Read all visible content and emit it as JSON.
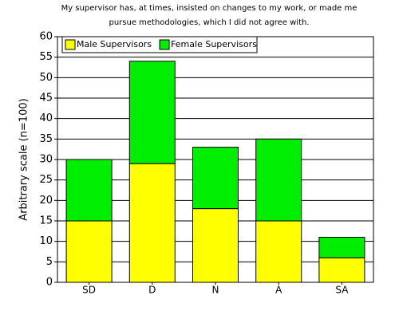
{
  "chart_data": {
    "type": "stacked-bar",
    "title": [
      "My supervisor has, at times, insisted on changes to my work, or made me",
      "pursue methodologies, which I did not agree with."
    ],
    "y_label": "Arbitrary scale (n=100)",
    "categories": [
      "SD",
      "D",
      "N",
      "A",
      "SA"
    ],
    "series": [
      {
        "name": "Male Supervisors",
        "color": "#ffff00",
        "values": [
          15,
          29,
          18,
          15,
          6
        ]
      },
      {
        "name": "Female Supervisors",
        "color": "#00ee00",
        "values": [
          15,
          25,
          15,
          20,
          5
        ]
      }
    ],
    "ylim": [
      0,
      60
    ],
    "yticks": [
      0,
      5,
      10,
      15,
      20,
      25,
      30,
      35,
      40,
      45,
      50,
      55,
      60
    ],
    "grid": true,
    "legend": "top-left"
  }
}
